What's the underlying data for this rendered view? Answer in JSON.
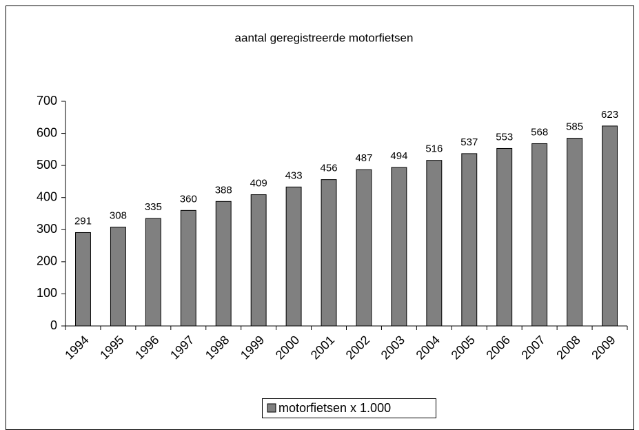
{
  "chart_data": {
    "type": "bar",
    "title": "aantal geregistreerde motorfietsen",
    "categories": [
      "1994",
      "1995",
      "1996",
      "1997",
      "1998",
      "1999",
      "2000",
      "2001",
      "2002",
      "2003",
      "2004",
      "2005",
      "2006",
      "2007",
      "2008",
      "2009"
    ],
    "series": [
      {
        "name": "motorfietsen x 1.000",
        "color": "#808080",
        "values": [
          291,
          308,
          335,
          360,
          388,
          409,
          433,
          456,
          487,
          494,
          516,
          537,
          553,
          568,
          585,
          623
        ]
      }
    ],
    "ylim": [
      0,
      700
    ],
    "yticks": [
      0,
      100,
      200,
      300,
      400,
      500,
      600,
      700
    ],
    "grid": false,
    "data_labels": true,
    "legend": "bottom"
  }
}
